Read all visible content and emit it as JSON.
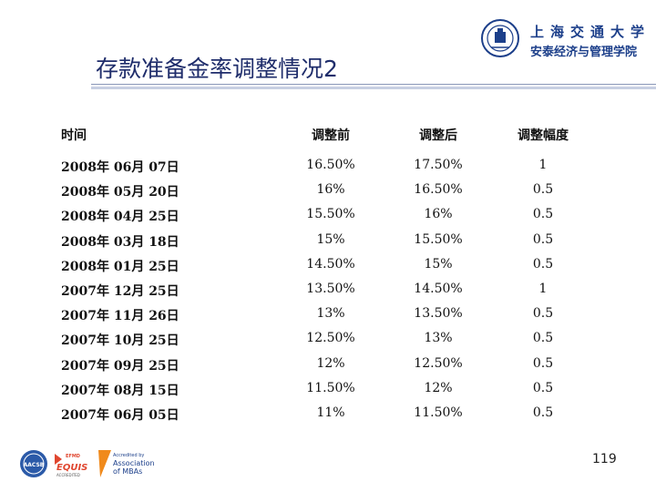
{
  "title": "存款准备金率调整情况2",
  "logo": {
    "line1": "上海交通大学",
    "line2": "安泰经济与管理学院"
  },
  "table": {
    "headers": [
      "时间",
      "调整前",
      "调整后",
      "调整幅度"
    ],
    "rows": [
      [
        "2008年 06月 07日",
        "16.50%",
        "17.50%",
        "1"
      ],
      [
        "2008年 05月 20日",
        "16%",
        "16.50%",
        "0.5"
      ],
      [
        "2008年 04月 25日",
        "15.50%",
        "16%",
        "0.5"
      ],
      [
        "2008年 03月 18日",
        "15%",
        "15.50%",
        "0.5"
      ],
      [
        "2008年 01月 25日",
        "14.50%",
        "15%",
        "0.5"
      ],
      [
        "2007年 12月 25日",
        "13.50%",
        "14.50%",
        "1"
      ],
      [
        "2007年 11月 26日",
        "13%",
        "13.50%",
        "0.5"
      ],
      [
        "2007年 10月 25日",
        "12.50%",
        "13%",
        "0.5"
      ],
      [
        "2007年 09月 25日",
        "12%",
        "12.50%",
        "0.5"
      ],
      [
        "2007年 08月 15日",
        "11.50%",
        "12%",
        "0.5"
      ],
      [
        "2007年 06月 05日",
        "11%",
        "11.50%",
        "0.5"
      ]
    ]
  },
  "footer": {
    "accreditation": {
      "aacsb": "AACSB",
      "efmd": "EFMD",
      "equis": "EQUIS",
      "equis_sub": "ACCREDITED",
      "amba_line1": "Accredited by",
      "amba_line2": "Association",
      "amba_line3": "of MBAs"
    },
    "page_number": "119"
  },
  "colors": {
    "title": "#1f2d6b",
    "logo": "#1c3f8a"
  }
}
